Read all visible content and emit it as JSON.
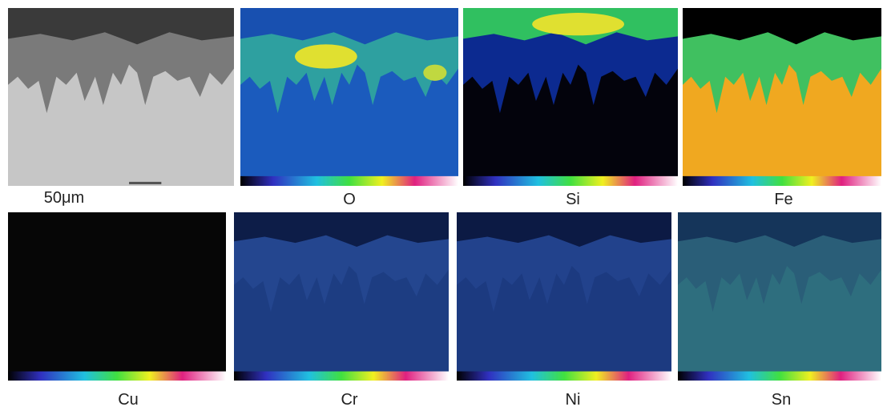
{
  "panels": [
    {
      "label": "50μm"
    },
    {
      "label": "O"
    },
    {
      "label": "Si"
    },
    {
      "label": "Fe"
    },
    {
      "label": "Cu"
    },
    {
      "label": "Cr"
    },
    {
      "label": "Ni"
    },
    {
      "label": "Sn"
    }
  ]
}
